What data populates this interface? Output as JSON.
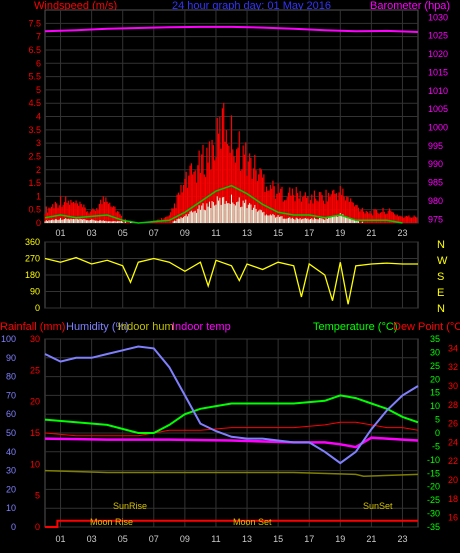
{
  "header": {
    "left": "Windspeed (m/s)",
    "center": "24 hour graph day:  01 May 2016",
    "right": "Barometer (hpa)"
  },
  "colors": {
    "windspeed": "#ff0000",
    "gust_avg": "#00cc00",
    "light": "#e8ffe8",
    "barometer": "#ff00ff",
    "direction": "#ffff00",
    "rainfall": "#ff0000",
    "humidity": "#8080ff",
    "indoor_hum": "#808000",
    "indoor_temp": "#ff00ff",
    "temperature": "#00ff00",
    "dew_point": "#ff0000",
    "header_blue": "#3333ff"
  },
  "chart_data": [
    {
      "type": "bar",
      "name": "wind-barometer",
      "x_ticks": [
        "01",
        "03",
        "05",
        "07",
        "09",
        "11",
        "13",
        "15",
        "17",
        "19",
        "21",
        "23"
      ],
      "left_axis": {
        "label": "Windspeed (m/s)",
        "ticks": [
          "0",
          "0.5",
          "1",
          "1.5",
          "2",
          "2.5",
          "3",
          "3.5",
          "4",
          "4.5",
          "5",
          "5.5",
          "6",
          "6.5",
          "7",
          "7.5"
        ],
        "ylim": [
          0,
          8
        ]
      },
      "right_axis": {
        "label": "Barometer (hpa)",
        "ticks": [
          "975",
          "980",
          "985",
          "990",
          "995",
          "1000",
          "1005",
          "1010",
          "1015",
          "1020",
          "1025",
          "1030"
        ],
        "ylim": [
          974,
          1032
        ]
      },
      "barometer": [
        [
          0,
          1026.2
        ],
        [
          2,
          1026.5
        ],
        [
          4,
          1026.9
        ],
        [
          6,
          1027.1
        ],
        [
          8,
          1027.3
        ],
        [
          10,
          1027.4
        ],
        [
          12,
          1027.4
        ],
        [
          14,
          1027.2
        ],
        [
          16,
          1026.9
        ],
        [
          18,
          1026.5
        ],
        [
          20,
          1026.2
        ],
        [
          22,
          1026.3
        ],
        [
          24,
          1026.0
        ]
      ],
      "wind_max": [
        [
          0,
          0.6
        ],
        [
          1,
          1.1
        ],
        [
          2,
          0.9
        ],
        [
          3,
          0.5
        ],
        [
          4,
          1.3
        ],
        [
          5,
          0.2
        ],
        [
          6,
          0
        ],
        [
          7,
          0.1
        ],
        [
          8,
          0.3
        ],
        [
          9,
          1.9
        ],
        [
          10,
          2.8
        ],
        [
          11,
          3.8
        ],
        [
          11.5,
          4.9
        ],
        [
          12,
          4.2
        ],
        [
          12.5,
          3.6
        ],
        [
          13,
          3.1
        ],
        [
          14,
          2.2
        ],
        [
          15,
          1.5
        ],
        [
          16,
          1.4
        ],
        [
          17,
          1.2
        ],
        [
          18,
          1.3
        ],
        [
          19,
          1.5
        ],
        [
          20,
          0.8
        ],
        [
          21,
          0.5
        ],
        [
          22,
          0.6
        ],
        [
          23,
          0.3
        ]
      ],
      "wind_avg": [
        [
          0,
          0.2
        ],
        [
          1,
          0.3
        ],
        [
          2,
          0.2
        ],
        [
          4,
          0.3
        ],
        [
          5,
          0.1
        ],
        [
          6,
          0
        ],
        [
          8,
          0.1
        ],
        [
          9,
          0.4
        ],
        [
          10,
          0.8
        ],
        [
          11,
          1.2
        ],
        [
          12,
          1.4
        ],
        [
          13,
          1.1
        ],
        [
          14,
          0.7
        ],
        [
          15,
          0.4
        ],
        [
          16,
          0.3
        ],
        [
          17,
          0.3
        ],
        [
          18,
          0.2
        ],
        [
          19,
          0.3
        ],
        [
          20,
          0.1
        ],
        [
          22,
          0.1
        ],
        [
          23,
          0
        ]
      ],
      "light": [
        [
          0,
          0.1
        ],
        [
          1,
          0.2
        ],
        [
          4,
          0.1
        ],
        [
          8,
          0
        ],
        [
          9,
          0.3
        ],
        [
          10,
          0.7
        ],
        [
          11,
          1.0
        ],
        [
          12,
          1.1
        ],
        [
          13,
          0.9
        ],
        [
          14,
          0.5
        ],
        [
          15,
          0.3
        ],
        [
          16,
          0.2
        ],
        [
          18,
          0.2
        ],
        [
          19,
          0.4
        ],
        [
          20,
          0.1
        ],
        [
          21,
          0
        ]
      ]
    },
    {
      "type": "line",
      "name": "wind-direction",
      "y_ticks": [
        "0",
        "90",
        "180",
        "270",
        "360"
      ],
      "ylim": [
        0,
        360
      ],
      "compass": [
        "N",
        "W",
        "S",
        "E",
        "N"
      ],
      "direction": [
        [
          0,
          270
        ],
        [
          1,
          250
        ],
        [
          2,
          275
        ],
        [
          3,
          240
        ],
        [
          4,
          260
        ],
        [
          5,
          230
        ],
        [
          5.5,
          140
        ],
        [
          6,
          250
        ],
        [
          7,
          270
        ],
        [
          8,
          250
        ],
        [
          9,
          200
        ],
        [
          10,
          250
        ],
        [
          10.5,
          120
        ],
        [
          11,
          260
        ],
        [
          12,
          230
        ],
        [
          12.5,
          150
        ],
        [
          13,
          240
        ],
        [
          14,
          210
        ],
        [
          15,
          250
        ],
        [
          16,
          230
        ],
        [
          16.5,
          60
        ],
        [
          17,
          240
        ],
        [
          18,
          180
        ],
        [
          18.5,
          40
        ],
        [
          19,
          250
        ],
        [
          19.5,
          20
        ],
        [
          20,
          230
        ],
        [
          21,
          240
        ],
        [
          22,
          245
        ],
        [
          23,
          240
        ],
        [
          24,
          240
        ]
      ]
    },
    {
      "type": "line",
      "name": "temp-humidity",
      "series_labels": {
        "rainfall": "Rainfall (mm)",
        "humidity": "Humidity (%)",
        "indoor_hum": "Indoor hum",
        "indoor_temp": "Indoor temp",
        "temperature": "Temperature (°C)",
        "dew_point": "Dew Point (°C)"
      },
      "humidity_axis": {
        "ticks": [
          "0",
          "10",
          "20",
          "30",
          "40",
          "50",
          "60",
          "70",
          "80",
          "90",
          "100"
        ],
        "ylim": [
          0,
          100
        ]
      },
      "rain_axis": {
        "ticks": [
          "0",
          "5",
          "10",
          "15",
          "20",
          "25",
          "30"
        ],
        "ylim": [
          0,
          30
        ]
      },
      "temp_axis": {
        "ticks": [
          "-35",
          "-30",
          "-25",
          "-20",
          "-15",
          "-10",
          "-5",
          "0",
          "5",
          "10",
          "15",
          "20",
          "25",
          "30",
          "35"
        ],
        "ylim": [
          -35,
          35
        ]
      },
      "indoor_axis": {
        "ticks": [
          "16",
          "18",
          "20",
          "22",
          "24",
          "26",
          "28",
          "30",
          "32",
          "34"
        ],
        "ylim": [
          15,
          35
        ]
      },
      "humidity": [
        [
          0,
          92
        ],
        [
          1,
          88
        ],
        [
          2,
          90
        ],
        [
          3,
          90
        ],
        [
          4,
          92
        ],
        [
          5,
          94
        ],
        [
          6,
          96
        ],
        [
          7,
          95
        ],
        [
          8,
          85
        ],
        [
          9,
          70
        ],
        [
          10,
          55
        ],
        [
          11,
          51
        ],
        [
          12,
          48
        ],
        [
          13,
          47
        ],
        [
          14,
          47
        ],
        [
          15,
          46
        ],
        [
          16,
          45
        ],
        [
          17,
          45
        ],
        [
          18,
          40
        ],
        [
          19,
          34
        ],
        [
          20,
          40
        ],
        [
          21,
          52
        ],
        [
          22,
          62
        ],
        [
          23,
          70
        ],
        [
          24,
          75
        ]
      ],
      "indoor_hum": [
        [
          0,
          30
        ],
        [
          4,
          29
        ],
        [
          8,
          29
        ],
        [
          12,
          29
        ],
        [
          16,
          29
        ],
        [
          20,
          28
        ],
        [
          20.5,
          27
        ],
        [
          24,
          28
        ]
      ],
      "temperature": [
        [
          0,
          5
        ],
        [
          2,
          4
        ],
        [
          4,
          3
        ],
        [
          6,
          0
        ],
        [
          7,
          0
        ],
        [
          8,
          3
        ],
        [
          9,
          7
        ],
        [
          10,
          9
        ],
        [
          11,
          10
        ],
        [
          12,
          11
        ],
        [
          14,
          11
        ],
        [
          16,
          11
        ],
        [
          18,
          12
        ],
        [
          19,
          14
        ],
        [
          20,
          13
        ],
        [
          21,
          11
        ],
        [
          22,
          9
        ],
        [
          23,
          6
        ],
        [
          24,
          4
        ]
      ],
      "dew_point": [
        [
          0,
          0
        ],
        [
          2,
          -1
        ],
        [
          4,
          -1
        ],
        [
          6,
          -1
        ],
        [
          7,
          0
        ],
        [
          8,
          1
        ],
        [
          9,
          1
        ],
        [
          10,
          1
        ],
        [
          12,
          2
        ],
        [
          14,
          2
        ],
        [
          16,
          2
        ],
        [
          18,
          3
        ],
        [
          19,
          4
        ],
        [
          20,
          4
        ],
        [
          21,
          3
        ],
        [
          22,
          2
        ],
        [
          23,
          2
        ],
        [
          24,
          1
        ]
      ],
      "indoor_temp": [
        [
          0,
          24.4
        ],
        [
          4,
          24.3
        ],
        [
          8,
          24.3
        ],
        [
          12,
          24.2
        ],
        [
          16,
          24.0
        ],
        [
          18,
          24.0
        ],
        [
          19,
          23.8
        ],
        [
          20,
          23.5
        ],
        [
          21,
          24.5
        ],
        [
          23,
          24.3
        ],
        [
          24,
          24.2
        ]
      ],
      "rain_line": [
        [
          0,
          0
        ],
        [
          0.8,
          0
        ],
        [
          0.8,
          1
        ],
        [
          24,
          1
        ]
      ],
      "annotations": {
        "sunrise": "SunRise",
        "sunset": "SunSet",
        "moonrise": "Moon Rise",
        "moonset": "Moon Set"
      }
    }
  ]
}
